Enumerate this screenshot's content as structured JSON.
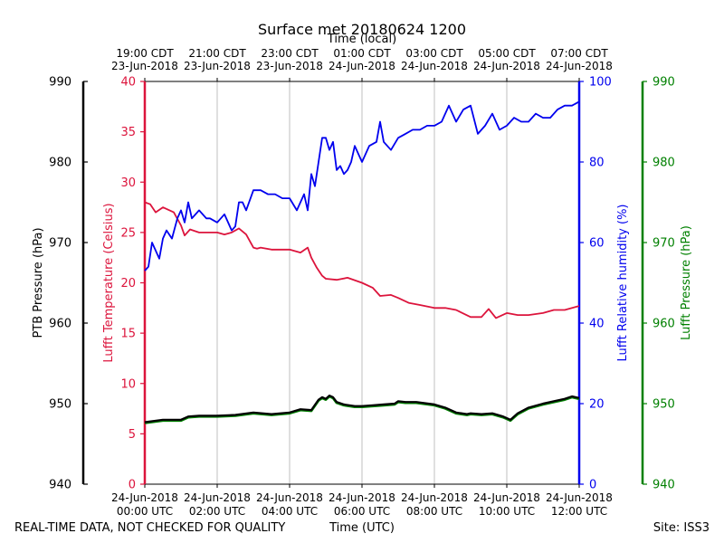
{
  "chart_data": {
    "type": "line",
    "title": "Surface met 20180624 1200",
    "top_axis_label": "Time (local)",
    "xlabel": "Time (UTC)",
    "footer_left": "REAL-TIME DATA, NOT CHECKED FOR QUALITY",
    "footer_right": "Site: ISS3",
    "x_range_hours": [
      0,
      12
    ],
    "bottom_ticks": [
      {
        "hour": 0,
        "line1": "24-Jun-2018",
        "line2": "00:00 UTC"
      },
      {
        "hour": 2,
        "line1": "24-Jun-2018",
        "line2": "02:00 UTC"
      },
      {
        "hour": 4,
        "line1": "24-Jun-2018",
        "line2": "04:00 UTC"
      },
      {
        "hour": 6,
        "line1": "24-Jun-2018",
        "line2": "06:00 UTC"
      },
      {
        "hour": 8,
        "line1": "24-Jun-2018",
        "line2": "08:00 UTC"
      },
      {
        "hour": 10,
        "line1": "24-Jun-2018",
        "line2": "10:00 UTC"
      },
      {
        "hour": 12,
        "line1": "24-Jun-2018",
        "line2": "12:00 UTC"
      }
    ],
    "top_ticks": [
      {
        "hour": 0,
        "line1": "19:00 CDT",
        "line2": "23-Jun-2018"
      },
      {
        "hour": 2,
        "line1": "21:00 CDT",
        "line2": "23-Jun-2018"
      },
      {
        "hour": 4,
        "line1": "23:00 CDT",
        "line2": "23-Jun-2018"
      },
      {
        "hour": 6,
        "line1": "01:00 CDT",
        "line2": "24-Jun-2018"
      },
      {
        "hour": 8,
        "line1": "03:00 CDT",
        "line2": "24-Jun-2018"
      },
      {
        "hour": 10,
        "line1": "05:00 CDT",
        "line2": "24-Jun-2018"
      },
      {
        "hour": 12,
        "line1": "07:00 CDT",
        "line2": "24-Jun-2018"
      }
    ],
    "axes": {
      "ptb": {
        "label": "PTB Pressure (hPa)",
        "range": [
          940,
          990
        ],
        "ticks": [
          940,
          950,
          960,
          970,
          980,
          990
        ],
        "color": "#000000"
      },
      "temp": {
        "label": "Lufft Temperature (Celsius)",
        "range": [
          0,
          40
        ],
        "ticks": [
          0,
          5,
          10,
          15,
          20,
          25,
          30,
          35,
          40
        ],
        "color": "#dc143c"
      },
      "rh": {
        "label": "Lufft Relative humidity (%)",
        "range": [
          0,
          100
        ],
        "ticks": [
          0,
          20,
          40,
          60,
          80,
          100
        ],
        "color": "#0000ee"
      },
      "lufft_p": {
        "label": "Lufft Pressure (hPa)",
        "range": [
          940,
          990
        ],
        "ticks": [
          940,
          950,
          960,
          970,
          980,
          990
        ],
        "color": "#008000"
      }
    },
    "series": [
      {
        "name": "Lufft Temperature",
        "axis": "temp",
        "color": "#dc143c",
        "x": [
          0,
          0.15,
          0.3,
          0.5,
          0.8,
          1.0,
          1.1,
          1.25,
          1.5,
          1.8,
          2.0,
          2.2,
          2.4,
          2.6,
          2.8,
          3.0,
          3.1,
          3.2,
          3.5,
          4.0,
          4.3,
          4.5,
          4.6,
          4.75,
          4.9,
          5.0,
          5.3,
          5.6,
          6.0,
          6.3,
          6.5,
          6.8,
          7.0,
          7.3,
          7.6,
          8.0,
          8.3,
          8.6,
          9.0,
          9.3,
          9.5,
          9.7,
          10.0,
          10.3,
          10.6,
          11.0,
          11.3,
          11.6,
          12.0
        ],
        "y": [
          28.0,
          27.8,
          27.0,
          27.5,
          27.0,
          25.7,
          24.7,
          25.3,
          25.0,
          25.0,
          25.0,
          24.8,
          25.0,
          25.4,
          24.8,
          23.5,
          23.4,
          23.5,
          23.3,
          23.3,
          23.0,
          23.5,
          22.5,
          21.5,
          20.7,
          20.4,
          20.3,
          20.5,
          20.0,
          19.5,
          18.7,
          18.8,
          18.5,
          18.0,
          17.8,
          17.5,
          17.5,
          17.3,
          16.6,
          16.6,
          17.4,
          16.5,
          17.0,
          16.8,
          16.8,
          17.0,
          17.3,
          17.3,
          17.7
        ]
      },
      {
        "name": "Lufft Relative humidity",
        "axis": "rh",
        "color": "#0000ee",
        "x": [
          0,
          0.1,
          0.2,
          0.3,
          0.4,
          0.5,
          0.6,
          0.75,
          0.9,
          1.0,
          1.1,
          1.2,
          1.3,
          1.5,
          1.7,
          1.8,
          2.0,
          2.2,
          2.4,
          2.5,
          2.6,
          2.7,
          2.8,
          3.0,
          3.2,
          3.4,
          3.6,
          3.8,
          4.0,
          4.2,
          4.4,
          4.5,
          4.6,
          4.7,
          4.8,
          4.9,
          5.0,
          5.1,
          5.2,
          5.3,
          5.4,
          5.5,
          5.6,
          5.7,
          5.8,
          6.0,
          6.2,
          6.4,
          6.5,
          6.6,
          6.8,
          7.0,
          7.2,
          7.4,
          7.6,
          7.8,
          8.0,
          8.2,
          8.4,
          8.6,
          8.8,
          9.0,
          9.2,
          9.4,
          9.6,
          9.8,
          10.0,
          10.2,
          10.4,
          10.6,
          10.8,
          11.0,
          11.2,
          11.4,
          11.6,
          11.8,
          12.0
        ],
        "y": [
          53,
          54,
          60,
          58,
          56,
          61,
          63,
          61,
          66,
          68,
          65,
          70,
          66,
          68,
          66,
          66,
          65,
          67,
          63,
          64,
          70,
          70,
          68,
          73,
          73,
          72,
          72,
          71,
          71,
          68,
          72,
          68,
          77,
          74,
          80,
          86,
          86,
          83,
          85,
          78,
          79,
          77,
          78,
          80,
          84,
          80,
          84,
          85,
          90,
          85,
          83,
          86,
          87,
          88,
          88,
          89,
          89,
          90,
          94,
          90,
          93,
          94,
          87,
          89,
          92,
          88,
          89,
          91,
          90,
          90,
          92,
          91,
          91,
          93,
          94,
          94,
          95
        ]
      },
      {
        "name": "PTB Pressure",
        "axis": "ptb",
        "color": "#000000",
        "x": [
          0,
          0.5,
          1.0,
          1.2,
          1.5,
          2.0,
          2.5,
          3.0,
          3.5,
          4.0,
          4.3,
          4.6,
          4.8,
          4.9,
          5.0,
          5.1,
          5.2,
          5.3,
          5.5,
          5.8,
          6.0,
          6.3,
          6.6,
          6.9,
          7.0,
          7.2,
          7.5,
          8.0,
          8.3,
          8.6,
          8.9,
          9.0,
          9.3,
          9.6,
          9.9,
          10.0,
          10.1,
          10.3,
          10.6,
          11.0,
          11.3,
          11.6,
          11.8,
          12.0
        ],
        "y": [
          947.7,
          948.0,
          948.0,
          948.4,
          948.5,
          948.5,
          948.6,
          948.9,
          948.7,
          948.9,
          949.3,
          949.2,
          950.5,
          950.8,
          950.6,
          951.0,
          950.8,
          950.2,
          949.9,
          949.7,
          949.7,
          949.8,
          949.9,
          950.0,
          950.3,
          950.2,
          950.2,
          949.9,
          949.5,
          948.9,
          948.7,
          948.8,
          948.7,
          948.8,
          948.4,
          948.2,
          948.0,
          948.8,
          949.5,
          950.0,
          950.3,
          950.6,
          950.9,
          950.7
        ]
      },
      {
        "name": "Lufft Pressure",
        "axis": "lufft_p",
        "color": "#008000",
        "x": [
          0,
          0.5,
          1.0,
          1.2,
          1.5,
          2.0,
          2.5,
          3.0,
          3.5,
          4.0,
          4.3,
          4.6,
          4.8,
          4.9,
          5.0,
          5.1,
          5.2,
          5.3,
          5.5,
          5.8,
          6.0,
          6.3,
          6.6,
          6.9,
          7.0,
          7.2,
          7.5,
          8.0,
          8.3,
          8.6,
          8.9,
          9.0,
          9.3,
          9.6,
          9.9,
          10.0,
          10.1,
          10.3,
          10.6,
          11.0,
          11.3,
          11.6,
          11.8,
          12.0
        ],
        "y": [
          947.6,
          947.9,
          947.9,
          948.3,
          948.4,
          948.4,
          948.5,
          948.8,
          948.6,
          948.8,
          949.2,
          949.1,
          950.4,
          950.7,
          950.5,
          950.9,
          950.7,
          950.1,
          949.8,
          949.6,
          949.6,
          949.7,
          949.8,
          949.9,
          950.2,
          950.1,
          950.1,
          949.8,
          949.4,
          948.8,
          948.6,
          948.7,
          948.6,
          948.7,
          948.3,
          948.1,
          947.9,
          948.7,
          949.4,
          949.9,
          950.2,
          950.5,
          950.8,
          950.6
        ]
      }
    ]
  }
}
